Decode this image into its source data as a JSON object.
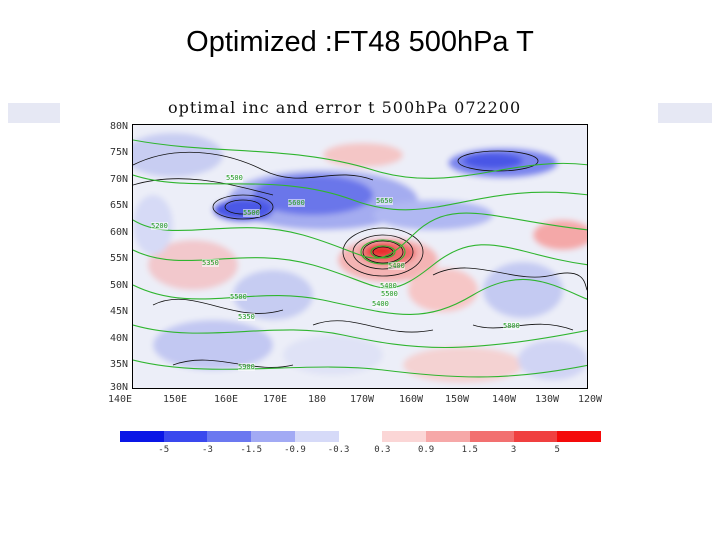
{
  "slide": {
    "title": "Optimized :FT48 500hPa T"
  },
  "plot": {
    "title": "optimal inc and error t 500hPa 072200"
  },
  "axes": {
    "y_ticks": [
      "80N",
      "75N",
      "70N",
      "65N",
      "60N",
      "55N",
      "50N",
      "45N",
      "40N",
      "35N",
      "30N"
    ],
    "x_ticks": [
      "140E",
      "150E",
      "160E",
      "170E",
      "180",
      "170W",
      "160W",
      "150W",
      "140W",
      "130W",
      "120W"
    ]
  },
  "legend": {
    "colors": [
      "#0a16e6",
      "#3a48ee",
      "#6b78f0",
      "#a2aaf4",
      "#d6daf8",
      "#ffffff",
      "#fbd6d6",
      "#f6a8a8",
      "#f27070",
      "#f04040",
      "#f40a0a"
    ],
    "labels": [
      "-5",
      "-3",
      "-1.5",
      "-0.9",
      "-0.3",
      "0.3",
      "0.9",
      "1.5",
      "3",
      "5"
    ]
  },
  "contour_labels": [
    {
      "text": "5500"
    },
    {
      "text": "5600"
    },
    {
      "text": "5500"
    },
    {
      "text": "5650"
    },
    {
      "text": "5200"
    },
    {
      "text": "5350"
    },
    {
      "text": "5400"
    },
    {
      "text": "5400"
    },
    {
      "text": "5500"
    },
    {
      "text": "5400"
    },
    {
      "text": "5500"
    },
    {
      "text": "5350"
    },
    {
      "text": "5800"
    },
    {
      "text": "5900"
    }
  ]
}
